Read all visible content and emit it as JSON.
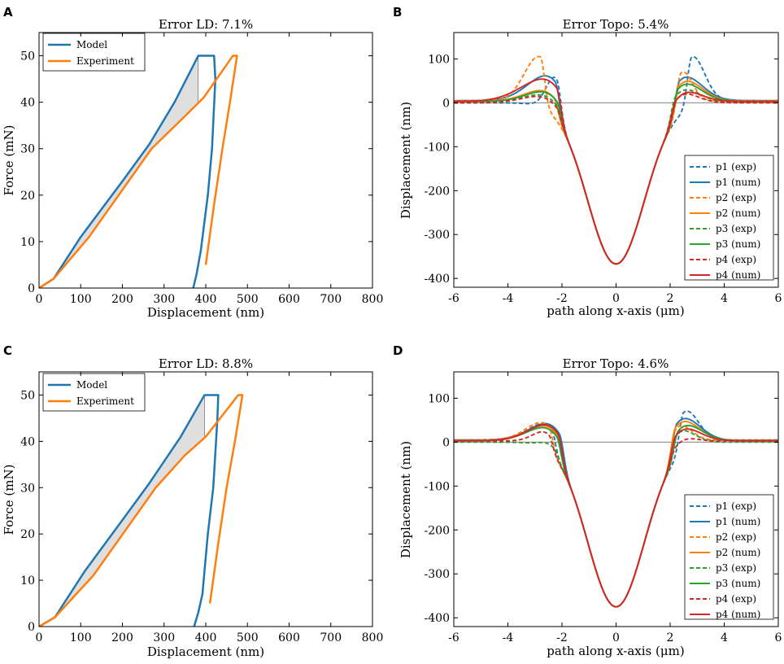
{
  "chart_data": [
    {
      "panel": "A",
      "type": "line",
      "title": "Error LD: 7.1%",
      "xlabel": "Displacement (nm)",
      "ylabel": "Force (mN)",
      "xlim": [
        0,
        800
      ],
      "ylim": [
        0,
        55
      ],
      "xticks": [
        0,
        100,
        200,
        300,
        400,
        500,
        600,
        700,
        800
      ],
      "yticks": [
        0,
        10,
        20,
        30,
        40,
        50
      ],
      "legend_loc": "top-left",
      "shaded_between": [
        "Model",
        "Experiment"
      ],
      "series": [
        {
          "name": "Model",
          "color": "#1f77b4",
          "style": "solid",
          "x": [
            0,
            35,
            100,
            200,
            265,
            325,
            382,
            392,
            420,
            423,
            415,
            405,
            388,
            378,
            370
          ],
          "y": [
            0,
            2,
            11,
            23,
            31,
            40,
            50,
            50,
            50,
            45,
            30,
            20,
            8,
            3,
            0
          ]
        },
        {
          "name": "Experiment",
          "color": "#ff7f0e",
          "style": "solid",
          "x": [
            0,
            35,
            120,
            270,
            350,
            395,
            465,
            475,
            458,
            440,
            420,
            400
          ],
          "y": [
            0,
            2,
            11,
            30,
            37,
            41,
            50,
            50,
            40,
            30,
            18,
            5
          ]
        }
      ]
    },
    {
      "panel": "B",
      "type": "line",
      "title": "Error Topo: 5.4%",
      "xlabel": "path along x-axis (μm)",
      "ylabel": "Displacement (nm)",
      "xlim": [
        -6,
        6
      ],
      "ylim": [
        -420,
        160
      ],
      "xticks": [
        -6,
        -4,
        -2,
        0,
        2,
        4,
        6
      ],
      "yticks": [
        -400,
        -300,
        -200,
        -100,
        0,
        100
      ],
      "legend_loc": "bottom-right",
      "zero_line": true,
      "series": [
        {
          "name": "p1 (exp)",
          "color": "#1f77b4",
          "style": "dashed",
          "pm": -2.2,
          "pp": 2.8,
          "hm": 95,
          "hp": 115,
          "sm": 0.5,
          "sp": 0.65,
          "tm": 0,
          "tp": 5
        },
        {
          "name": "p1 (num)",
          "color": "#1f77b4",
          "style": "solid",
          "pm": -2.25,
          "pp": 2.35,
          "hm": 85,
          "hp": 80,
          "sm": 1.2,
          "sp": 1.0,
          "tm": 5,
          "tp": 5
        },
        {
          "name": "p2 (exp)",
          "color": "#ff7f0e",
          "style": "dashed",
          "pm": -2.8,
          "pp": 2.4,
          "hm": 115,
          "hp": 95,
          "sm": 0.8,
          "sp": 0.55,
          "tm": 5,
          "tp": 5
        },
        {
          "name": "p2 (num)",
          "color": "#ff7f0e",
          "style": "solid",
          "pm": -2.3,
          "pp": 2.35,
          "hm": 45,
          "hp": 70,
          "sm": 1.2,
          "sp": 1.0,
          "tm": 3,
          "tp": 3
        },
        {
          "name": "p3 (exp)",
          "color": "#2ca02c",
          "style": "dashed",
          "pm": -2.2,
          "pp": 2.2,
          "hm": 35,
          "hp": 55,
          "sm": 1.3,
          "sp": 1.0,
          "tm": 0,
          "tp": 0
        },
        {
          "name": "p3 (num)",
          "color": "#2ca02c",
          "style": "solid",
          "pm": -2.2,
          "pp": 2.3,
          "hm": 45,
          "hp": 65,
          "sm": 1.2,
          "sp": 1.0,
          "tm": 3,
          "tp": 3
        },
        {
          "name": "p4 (exp)",
          "color": "#d62728",
          "style": "dashed",
          "pm": -2.2,
          "pp": 2.2,
          "hm": 30,
          "hp": 45,
          "sm": 1.3,
          "sp": 0.9,
          "tm": 0,
          "tp": 0
        },
        {
          "name": "p4 (num)",
          "color": "#d62728",
          "style": "solid",
          "pm": -2.2,
          "pp": 2.25,
          "hm": 75,
          "hp": 45,
          "sm": 1.5,
          "sp": 1.0,
          "tm": 3,
          "tp": 3
        }
      ],
      "valley_depth": -367
    },
    {
      "panel": "C",
      "type": "line",
      "title": "Error LD: 8.8%",
      "xlabel": "Displacement (nm)",
      "ylabel": "Force (mN)",
      "xlim": [
        0,
        800
      ],
      "ylim": [
        0,
        55
      ],
      "xticks": [
        0,
        100,
        200,
        300,
        400,
        500,
        600,
        700,
        800
      ],
      "yticks": [
        0,
        10,
        20,
        30,
        40,
        50
      ],
      "legend_loc": "top-left",
      "shaded_between": [
        "Model",
        "Experiment"
      ],
      "series": [
        {
          "name": "Model",
          "color": "#1f77b4",
          "style": "solid",
          "x": [
            0,
            38,
            110,
            200,
            265,
            340,
            397,
            405,
            430,
            428,
            418,
            405,
            392,
            382,
            372
          ],
          "y": [
            0,
            2,
            12,
            23,
            31,
            41,
            50,
            50,
            50,
            45,
            30,
            20,
            7,
            3,
            0
          ]
        },
        {
          "name": "Experiment",
          "color": "#ff7f0e",
          "style": "solid",
          "x": [
            0,
            38,
            130,
            280,
            350,
            400,
            478,
            488,
            470,
            450,
            430,
            410
          ],
          "y": [
            0,
            2,
            11,
            30,
            37,
            41,
            50,
            50,
            40,
            30,
            18,
            5
          ]
        }
      ]
    },
    {
      "panel": "D",
      "type": "line",
      "title": "Error Topo: 4.6%",
      "xlabel": "path along x-axis (μm)",
      "ylabel": "Displacement (nm)",
      "xlim": [
        -6,
        6
      ],
      "ylim": [
        -420,
        160
      ],
      "xticks": [
        -6,
        -4,
        -2,
        0,
        2,
        4,
        6
      ],
      "yticks": [
        -400,
        -300,
        -200,
        -100,
        0,
        100
      ],
      "legend_loc": "bottom-right",
      "zero_line": true,
      "series": [
        {
          "name": "p1 (exp)",
          "color": "#1f77b4",
          "style": "dashed",
          "pm": -2.4,
          "pp": 2.5,
          "hm": 60,
          "hp": 90,
          "sm": 1.0,
          "sp": 0.7,
          "tm": 5,
          "tp": 5
        },
        {
          "name": "p1 (num)",
          "color": "#1f77b4",
          "style": "solid",
          "pm": -2.1,
          "pp": 2.25,
          "hm": 70,
          "hp": 80,
          "sm": 1.2,
          "sp": 1.0,
          "tm": 5,
          "tp": 3
        },
        {
          "name": "p2 (exp)",
          "color": "#ff7f0e",
          "style": "dashed",
          "pm": -2.5,
          "pp": 2.2,
          "hm": 60,
          "hp": 70,
          "sm": 1.0,
          "sp": 0.7,
          "tm": 5,
          "tp": 5
        },
        {
          "name": "p2 (num)",
          "color": "#ff7f0e",
          "style": "solid",
          "pm": -2.2,
          "pp": 2.2,
          "hm": 60,
          "hp": 75,
          "sm": 1.2,
          "sp": 1.0,
          "tm": 3,
          "tp": 3
        },
        {
          "name": "p3 (exp)",
          "color": "#2ca02c",
          "style": "dashed",
          "pm": -2.3,
          "pp": 2.2,
          "hm": 20,
          "hp": 55,
          "sm": 0.6,
          "sp": 0.8,
          "tm": 0,
          "tp": 0
        },
        {
          "name": "p3 (num)",
          "color": "#2ca02c",
          "style": "solid",
          "pm": -2.2,
          "pp": 2.3,
          "hm": 55,
          "hp": 60,
          "sm": 1.2,
          "sp": 1.0,
          "tm": 3,
          "tp": 3
        },
        {
          "name": "p4 (exp)",
          "color": "#d62728",
          "style": "dashed",
          "pm": -2.5,
          "pp": 2.2,
          "hm": 40,
          "hp": 30,
          "sm": 0.7,
          "sp": 0.8,
          "tm": 3,
          "tp": 3
        },
        {
          "name": "p4 (num)",
          "color": "#d62728",
          "style": "solid",
          "pm": -2.15,
          "pp": 2.2,
          "hm": 65,
          "hp": 55,
          "sm": 1.2,
          "sp": 1.0,
          "tm": 3,
          "tp": 3
        }
      ],
      "valley_depth": -375
    }
  ]
}
